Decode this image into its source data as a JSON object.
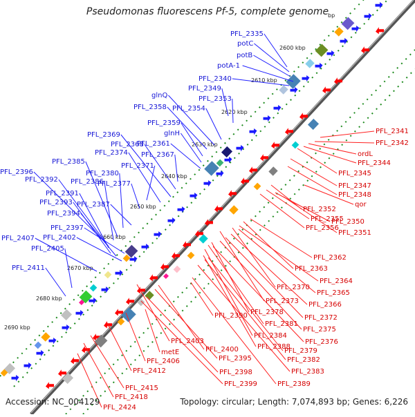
{
  "title": "Pseudomonas fluorescens Pf-5, complete genome",
  "footer": {
    "accession": "Accession: NC_004129",
    "info": "Topology: circular; Length: 7,074,893 bp; Genes: 6,226"
  },
  "colors": {
    "blue_label": "#1616d6",
    "red_label": "#d60000",
    "backbone": "#666666",
    "tick_green": "#1d8a1d",
    "forward_arrow": "#1a1aff",
    "reverse_arrow": "#ff0000"
  },
  "ticks": [
    {
      "label": "bp"
    },
    {
      "label": "2600 kbp"
    },
    {
      "label": "2610 kbp"
    },
    {
      "label": "2620 kbp"
    },
    {
      "label": "2630 kbp"
    },
    {
      "label": "2640 kbp"
    },
    {
      "label": "2650 kbp"
    },
    {
      "label": "2660 kbp"
    },
    {
      "label": "2670 kbp"
    },
    {
      "label": "2680 kbp"
    },
    {
      "label": "2690 kbp"
    }
  ],
  "forward_genes": [
    "PFL_2335",
    "potC",
    "potB",
    "potA-1",
    "PFL_2340",
    "PFL_2349",
    "PFL_2353",
    "PFL_2354",
    "glnQ",
    "PFL_2358",
    "PFL_2359",
    "glnH",
    "PFL_2361",
    "PFL_2367",
    "PFL_2368",
    "PFL_2369",
    "PFL_2374",
    "PFL_2371",
    "PFL_2377",
    "PFL_2380",
    "PFL_2385",
    "PFL_2386",
    "PFL_2387",
    "PFL_2396",
    "PFL_2392",
    "PFL_2391",
    "PFL_2393",
    "PFL_2394",
    "PFL_2397",
    "PFL_2402",
    "PFL_2407",
    "PFL_2405",
    "PFL_2411"
  ],
  "reverse_genes": [
    "PFL_2341",
    "PFL_2342",
    "ordL",
    "PFL_2344",
    "PFL_2345",
    "PFL_2347",
    "PFL_2348",
    "qor",
    "PFL_2352",
    "PFL_2355",
    "PFL_2350",
    "PFL_2356",
    "PFL_2351",
    "PFL_2362",
    "PFL_2363",
    "PFL_2364",
    "PFL_2370",
    "PFL_2365",
    "PFL_2373",
    "PFL_2366",
    "PFL_2378",
    "PFL_2372",
    "PFL_2381",
    "PFL_2375",
    "PFL_2384",
    "PFL_2376",
    "PFL_2388",
    "PFL_2379",
    "PFL_2382",
    "PFL_2390",
    "PFL_2383",
    "PFL_2389",
    "PFL_2403",
    "PFL_2400",
    "PFL_2395",
    "PFL_2398",
    "PFL_2399",
    "metE",
    "PFL_2406",
    "PFL_2412",
    "PFL_2415",
    "PFL_2418",
    "PFL_2424"
  ]
}
